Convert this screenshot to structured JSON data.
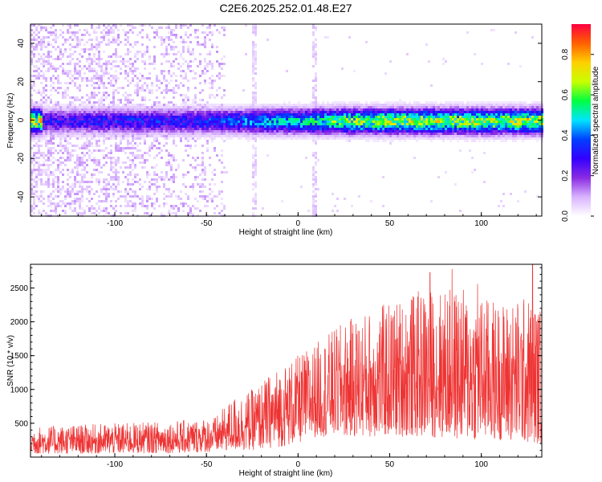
{
  "title": "C2E6.2025.252.01.48.E27",
  "chart_data": [
    {
      "type": "heatmap",
      "xlabel": "Height of straight line (km)",
      "ylabel": "Frequency (Hz)",
      "xlim": [
        -146,
        133
      ],
      "ylim": [
        -50,
        50
      ],
      "xticks": [
        -100,
        -50,
        0,
        50,
        100
      ],
      "yticks": [
        -40,
        -20,
        0,
        20,
        40
      ],
      "colorbar": {
        "label": "Normalized spectral amplitude",
        "range": [
          0.0,
          0.95
        ],
        "ticks": [
          0.0,
          0.2,
          0.4,
          0.6,
          0.8
        ],
        "colormap": [
          "#ffffff",
          "#d9b3ff",
          "#8a2be2",
          "#3300ff",
          "#0040ff",
          "#00e5ff",
          "#00ff40",
          "#c8ff00",
          "#ffd000",
          "#ff6000",
          "#ff0040"
        ]
      },
      "description_values": {
        "main_band_center_hz": 0,
        "main_band_halfwidth_hz": 4,
        "peak_amplitude_by_height": [
          {
            "x": -140,
            "amp": 0.35
          },
          {
            "x": -100,
            "amp": 0.4
          },
          {
            "x": -60,
            "amp": 0.4
          },
          {
            "x": -40,
            "amp": 0.45
          },
          {
            "x": -20,
            "amp": 0.55
          },
          {
            "x": 0,
            "amp": 0.6
          },
          {
            "x": 25,
            "amp": 0.75
          },
          {
            "x": 50,
            "amp": 0.8
          },
          {
            "x": 100,
            "amp": 0.8
          },
          {
            "x": 130,
            "amp": 0.85
          }
        ],
        "scatter_noise_region_km": [
          -146,
          -40
        ],
        "vertical_stripes_km": [
          -24,
          8
        ]
      }
    },
    {
      "type": "line",
      "xlabel": "Height of straight line (km)",
      "ylabel": "SNR (10 * v/v)",
      "xlim": [
        -146,
        133
      ],
      "ylim": [
        0,
        2850
      ],
      "xticks": [
        -100,
        -50,
        0,
        50,
        100
      ],
      "yticks": [
        500,
        1000,
        1500,
        2000,
        2500
      ],
      "color": "#ee3333",
      "envelope": [
        {
          "x": -146,
          "low": 50,
          "high": 450
        },
        {
          "x": -120,
          "low": 50,
          "high": 480
        },
        {
          "x": -100,
          "low": 50,
          "high": 500
        },
        {
          "x": -80,
          "low": 60,
          "high": 520
        },
        {
          "x": -60,
          "low": 60,
          "high": 550
        },
        {
          "x": -45,
          "low": 80,
          "high": 600
        },
        {
          "x": -35,
          "low": 100,
          "high": 900
        },
        {
          "x": -25,
          "low": 100,
          "high": 1000
        },
        {
          "x": -10,
          "low": 150,
          "high": 1350
        },
        {
          "x": 0,
          "low": 200,
          "high": 1500
        },
        {
          "x": 10,
          "low": 300,
          "high": 1700
        },
        {
          "x": 25,
          "low": 300,
          "high": 2000
        },
        {
          "x": 40,
          "low": 300,
          "high": 2200
        },
        {
          "x": 55,
          "low": 300,
          "high": 2350
        },
        {
          "x": 70,
          "low": 300,
          "high": 2500
        },
        {
          "x": 90,
          "low": 250,
          "high": 2500
        },
        {
          "x": 110,
          "low": 250,
          "high": 2300
        },
        {
          "x": 125,
          "low": 200,
          "high": 2400
        },
        {
          "x": 133,
          "low": 200,
          "high": 2200
        }
      ],
      "spikes": [
        {
          "x": 72,
          "y": 2730
        },
        {
          "x": 84,
          "y": 2780
        },
        {
          "x": 128,
          "y": 2850
        },
        {
          "x": 98,
          "y": 2560
        }
      ]
    }
  ]
}
